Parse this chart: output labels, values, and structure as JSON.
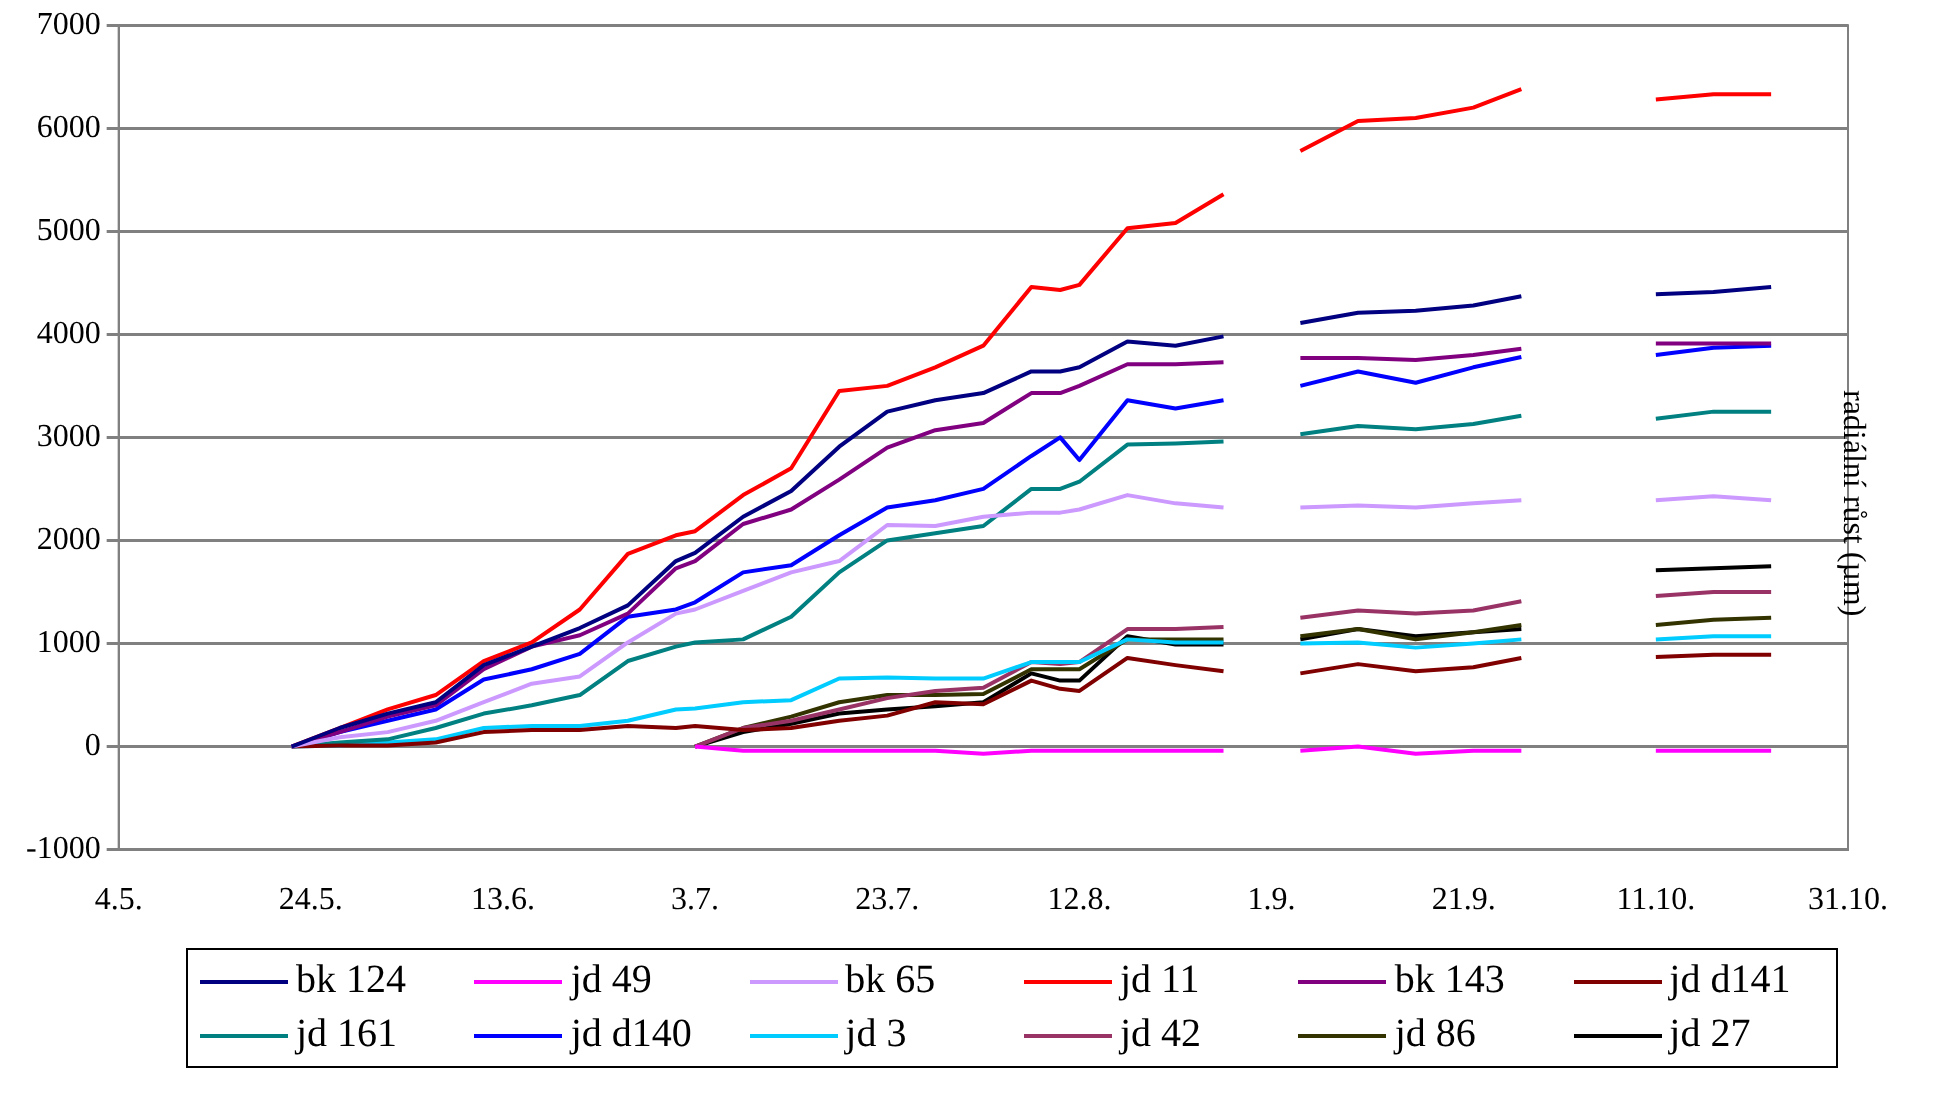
{
  "chart_data": {
    "type": "line",
    "ylabel": "radiální růst (µm)",
    "x": [
      "--05-22",
      "--05-27",
      "--06-01",
      "--06-06",
      "--06-11",
      "--06-16",
      "--06-21",
      "--06-26",
      "--07-01",
      "--07-03",
      "--07-08",
      "--07-13",
      "--07-18",
      "--07-23",
      "--07-28",
      "--08-02",
      "--08-07",
      "--08-10",
      "--08-12",
      "--08-17",
      "--08-22",
      "--08-27",
      "--08-31",
      "--09-04",
      "--09-10",
      "--09-16",
      "--09-22",
      "--09-27",
      "--10-04",
      "--10-11",
      "--10-17",
      "--10-23"
    ],
    "series": [
      {
        "name": "bk 124",
        "color": "#000080",
        "values": [
          0,
          180,
          320,
          430,
          790,
          970,
          1150,
          1370,
          1800,
          1880,
          2230,
          2480,
          2910,
          3250,
          3360,
          3430,
          3640,
          3640,
          3680,
          3930,
          3890,
          3980,
          null,
          4110,
          4210,
          4230,
          4280,
          4370,
          null,
          4390,
          4410,
          4460
        ]
      },
      {
        "name": "jd 49",
        "color": "#ff00ff",
        "values": [
          null,
          null,
          null,
          null,
          null,
          null,
          null,
          null,
          null,
          0,
          -40,
          -40,
          -40,
          -40,
          -40,
          -70,
          -40,
          -40,
          -40,
          -40,
          -40,
          -40,
          null,
          -40,
          0,
          -70,
          -40,
          -40,
          null,
          -40,
          -40,
          -40
        ]
      },
      {
        "name": "bk 65",
        "color": "#cc99ff",
        "values": [
          0,
          90,
          140,
          250,
          430,
          610,
          680,
          1010,
          1290,
          1330,
          1510,
          1690,
          1800,
          2150,
          2140,
          2230,
          2270,
          2270,
          2300,
          2440,
          2360,
          2320,
          null,
          2320,
          2340,
          2320,
          2360,
          2390,
          null,
          2390,
          2430,
          2390
        ]
      },
      {
        "name": "jd 11",
        "color": "#ff0000",
        "values": [
          0,
          180,
          360,
          500,
          830,
          1010,
          1330,
          1870,
          2050,
          2090,
          2440,
          2700,
          3450,
          3500,
          3680,
          3890,
          4460,
          4430,
          4480,
          5030,
          5080,
          5360,
          null,
          5780,
          6070,
          6100,
          6200,
          6380,
          null,
          6280,
          6330,
          6330
        ]
      },
      {
        "name": "bk 143",
        "color": "#800080",
        "values": [
          0,
          140,
          290,
          400,
          750,
          970,
          1080,
          1290,
          1730,
          1800,
          2160,
          2300,
          2590,
          2900,
          3070,
          3140,
          3430,
          3430,
          3500,
          3710,
          3710,
          3730,
          null,
          3770,
          3770,
          3750,
          3800,
          3860,
          null,
          3910,
          3910,
          3910
        ]
      },
      {
        "name": "jd d141",
        "color": "#800000",
        "values": [
          0,
          10,
          10,
          40,
          140,
          160,
          160,
          200,
          180,
          200,
          160,
          180,
          250,
          300,
          430,
          410,
          640,
          560,
          540,
          860,
          790,
          730,
          null,
          710,
          800,
          730,
          770,
          860,
          null,
          870,
          890,
          890
        ]
      },
      {
        "name": "jd 161",
        "color": "#008080",
        "values": [
          0,
          40,
          70,
          180,
          320,
          400,
          500,
          830,
          970,
          1010,
          1040,
          1260,
          1690,
          2000,
          2070,
          2140,
          2500,
          2500,
          2570,
          2930,
          2940,
          2960,
          null,
          3030,
          3110,
          3080,
          3130,
          3210,
          null,
          3180,
          3250,
          3250
        ]
      },
      {
        "name": "jd d140",
        "color": "#0000ff",
        "values": [
          0,
          140,
          250,
          360,
          650,
          750,
          900,
          1260,
          1330,
          1400,
          1690,
          1760,
          2050,
          2320,
          2390,
          2500,
          2820,
          3000,
          2780,
          3360,
          3280,
          3360,
          null,
          3500,
          3640,
          3530,
          3680,
          3780,
          null,
          3800,
          3870,
          3890
        ]
      },
      {
        "name": "jd 3",
        "color": "#00ccff",
        "values": [
          0,
          10,
          40,
          70,
          180,
          200,
          200,
          250,
          360,
          370,
          430,
          450,
          660,
          670,
          660,
          660,
          820,
          820,
          820,
          1040,
          1010,
          1010,
          null,
          1000,
          1010,
          960,
          1000,
          1040,
          null,
          1040,
          1070,
          1070
        ]
      },
      {
        "name": "jd 42",
        "color": "#993366",
        "values": [
          null,
          null,
          null,
          null,
          null,
          null,
          null,
          null,
          null,
          0,
          180,
          250,
          360,
          470,
          540,
          570,
          820,
          800,
          820,
          1140,
          1140,
          1160,
          null,
          1250,
          1320,
          1290,
          1320,
          1410,
          null,
          1460,
          1500,
          1500
        ]
      },
      {
        "name": "jd 86",
        "color": "#333300",
        "values": [
          null,
          null,
          null,
          null,
          null,
          null,
          null,
          null,
          null,
          0,
          180,
          290,
          430,
          500,
          500,
          510,
          750,
          750,
          750,
          1040,
          1040,
          1040,
          null,
          1070,
          1140,
          1040,
          1110,
          1180,
          null,
          1180,
          1230,
          1250
        ]
      },
      {
        "name": "jd 27",
        "color": "#000000",
        "values": [
          null,
          null,
          null,
          null,
          null,
          null,
          null,
          null,
          null,
          0,
          140,
          220,
          320,
          360,
          390,
          430,
          710,
          640,
          640,
          1070,
          990,
          990,
          null,
          1040,
          1140,
          1070,
          1110,
          1140,
          null,
          1710,
          1730,
          1750
        ]
      }
    ],
    "xlim": [
      "--05-04",
      "--10-31"
    ],
    "xticks": [
      {
        "value": "--05-04",
        "label": "4.5."
      },
      {
        "value": "--05-24",
        "label": "24.5."
      },
      {
        "value": "--06-13",
        "label": "13.6."
      },
      {
        "value": "--07-03",
        "label": "3.7."
      },
      {
        "value": "--07-23",
        "label": "23.7."
      },
      {
        "value": "--08-12",
        "label": "12.8."
      },
      {
        "value": "--09-01",
        "label": "1.9."
      },
      {
        "value": "--09-21",
        "label": "21.9."
      },
      {
        "value": "--10-11",
        "label": "11.10."
      },
      {
        "value": "--10-31",
        "label": "31.10."
      }
    ],
    "ylim": [
      -1000,
      7000
    ],
    "yticks": [
      -1000,
      0,
      1000,
      2000,
      3000,
      4000,
      5000,
      6000,
      7000
    ],
    "grid": "y",
    "legend": "bottom",
    "marker": "none",
    "line_style": "solid"
  }
}
